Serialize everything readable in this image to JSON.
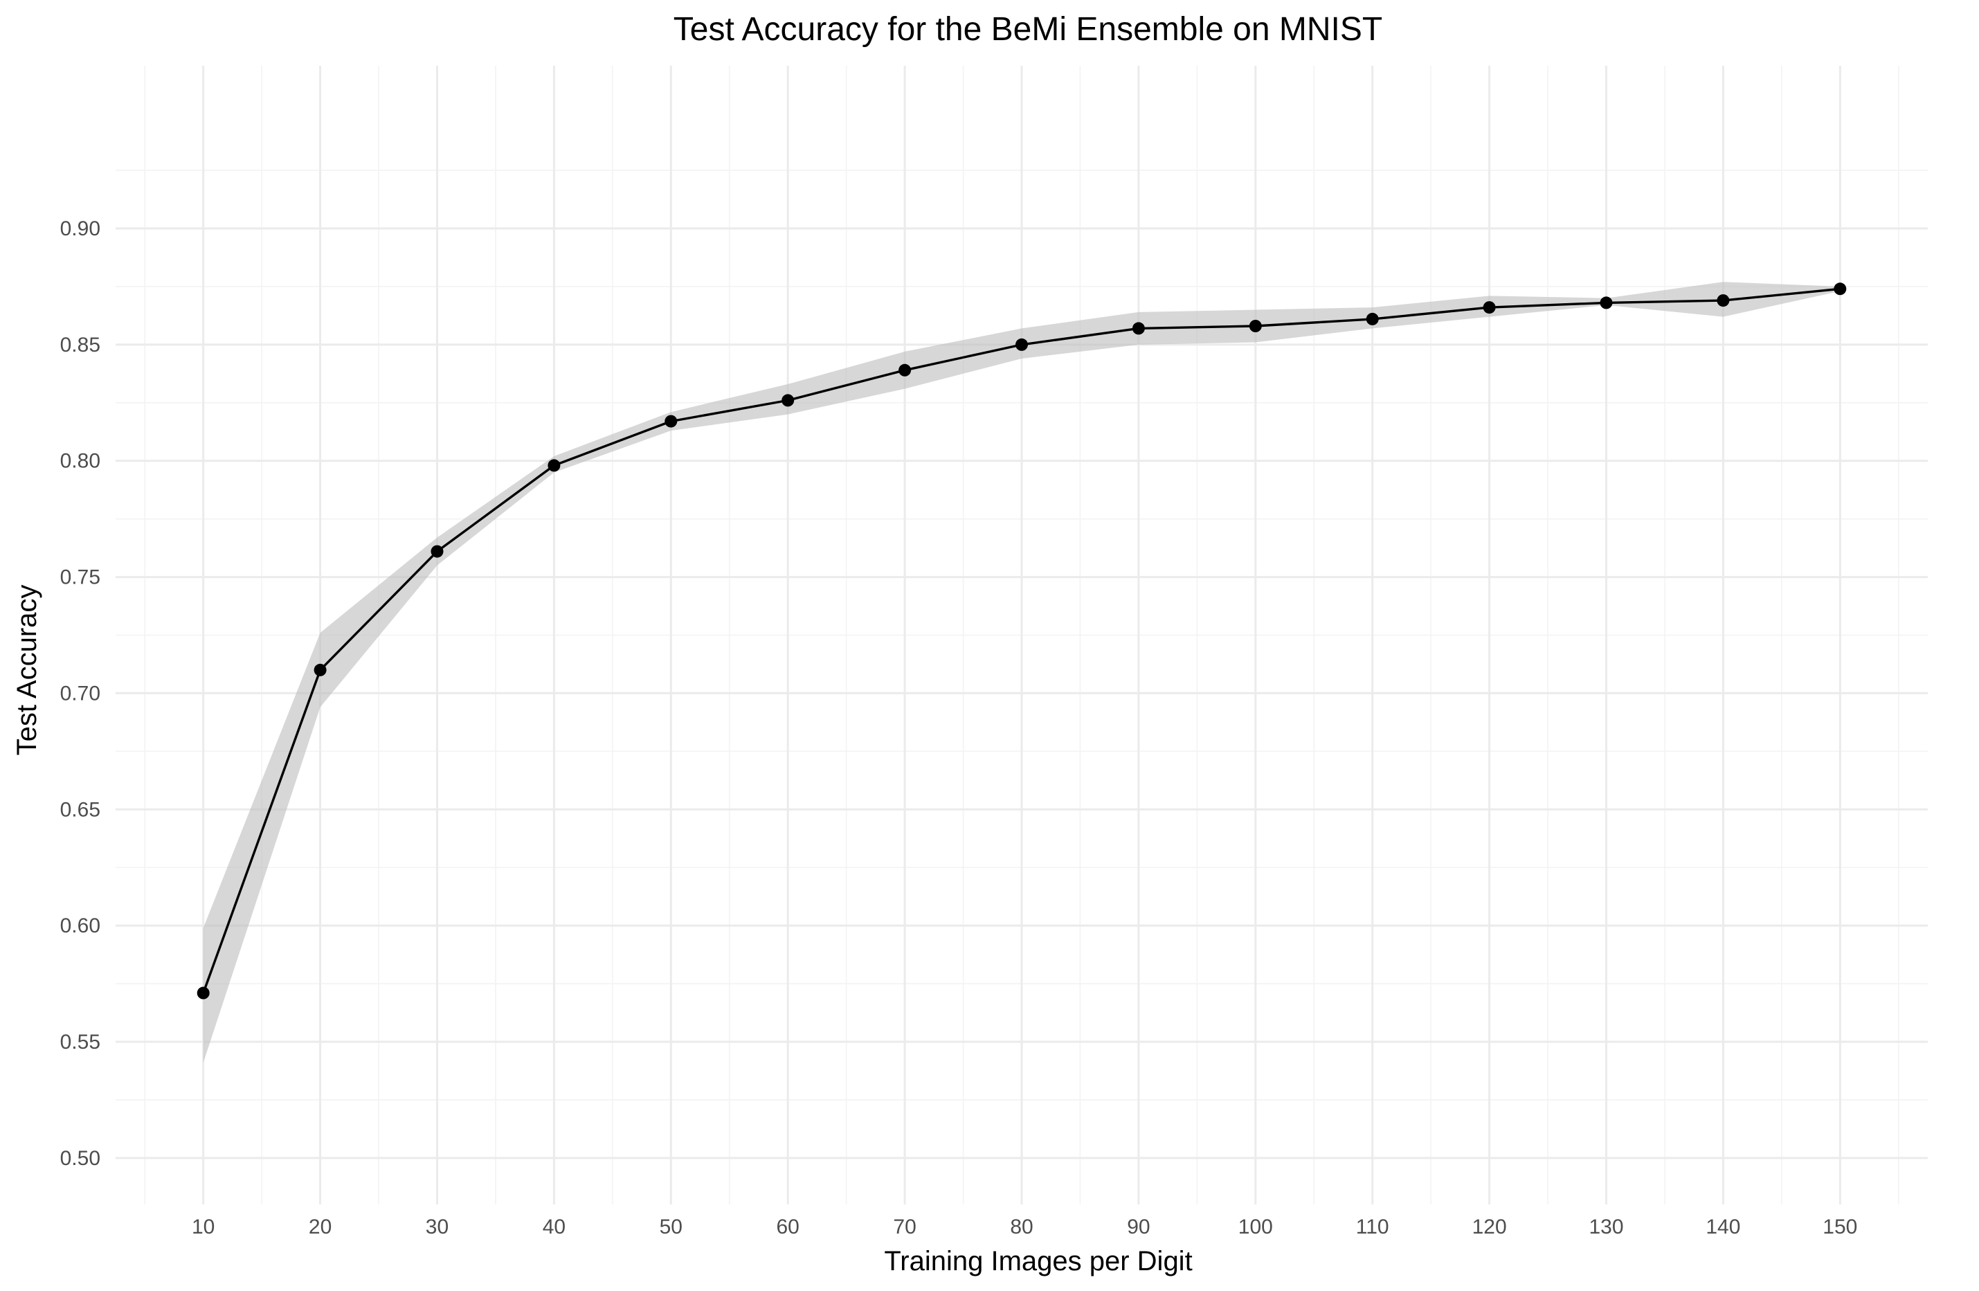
{
  "chart_data": {
    "type": "line",
    "title": "Test Accuracy for the BeMi Ensemble on MNIST",
    "xlabel": "Training Images per Digit",
    "ylabel": "Test Accuracy",
    "x": [
      10,
      20,
      30,
      40,
      50,
      60,
      70,
      80,
      90,
      100,
      110,
      120,
      130,
      140,
      150
    ],
    "series": [
      {
        "values": [
          0.571,
          0.71,
          0.761,
          0.798,
          0.817,
          0.826,
          0.839,
          0.85,
          0.857,
          0.858,
          0.861,
          0.866,
          0.868,
          0.869,
          0.874
        ],
        "lower": [
          0.541,
          0.694,
          0.755,
          0.795,
          0.813,
          0.82,
          0.831,
          0.844,
          0.85,
          0.851,
          0.857,
          0.862,
          0.867,
          0.862,
          0.873
        ],
        "upper": [
          0.599,
          0.726,
          0.767,
          0.802,
          0.821,
          0.833,
          0.847,
          0.857,
          0.864,
          0.865,
          0.866,
          0.871,
          0.87,
          0.877,
          0.875
        ]
      }
    ],
    "xticks": [
      "10",
      "20",
      "30",
      "40",
      "50",
      "60",
      "70",
      "80",
      "90",
      "100",
      "110",
      "120",
      "130",
      "140",
      "150"
    ],
    "yticks": [
      "0.50",
      "0.55",
      "0.60",
      "0.65",
      "0.70",
      "0.75",
      "0.80",
      "0.85",
      "0.90"
    ],
    "xlim": [
      2.5,
      157.5
    ],
    "ylim": [
      0.48,
      0.97
    ],
    "grid": true,
    "legend": "none",
    "colors": {
      "line": "#000000",
      "band": "#bdbdbd",
      "grid": "#ebebeb"
    }
  }
}
